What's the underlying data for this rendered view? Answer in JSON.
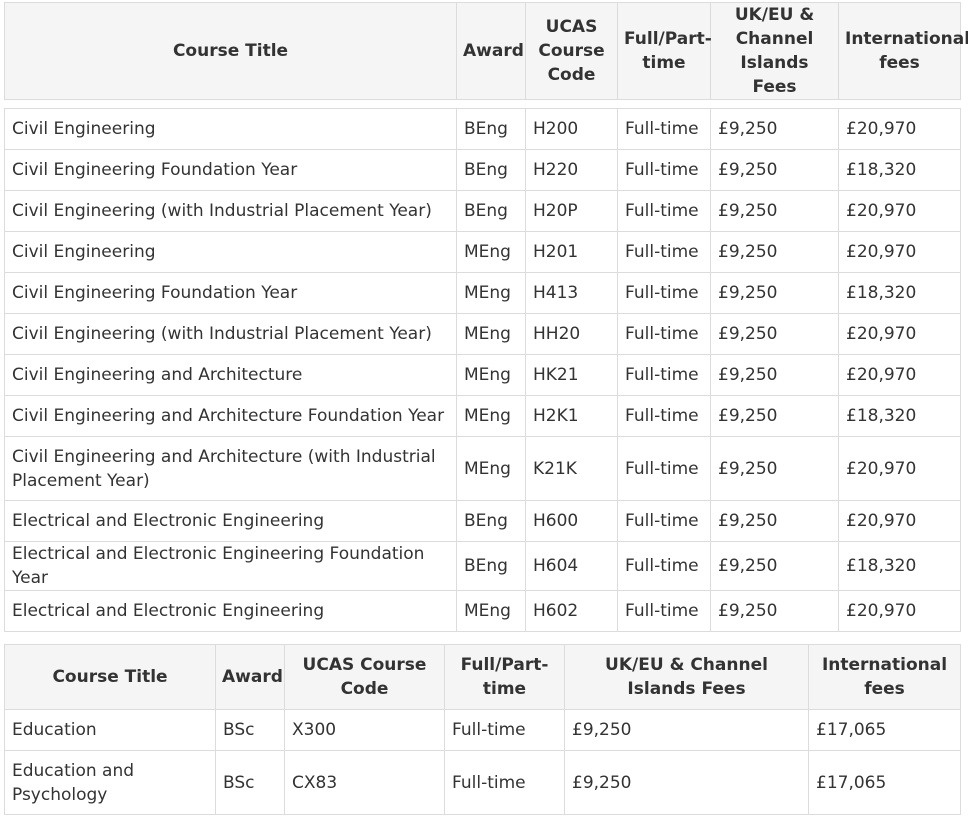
{
  "table1": {
    "headers": [
      "Course Title",
      "Award",
      "UCAS Course Code",
      "Full/Part-time",
      "UK/EU & Channel Islands Fees",
      "International fees"
    ],
    "rows": [
      [
        "Civil Engineering",
        "BEng",
        "H200",
        "Full-time",
        "£9,250",
        "£20,970"
      ],
      [
        "Civil Engineering Foundation Year",
        "BEng",
        "H220",
        "Full-time",
        "£9,250",
        "£18,320"
      ],
      [
        "Civil Engineering (with Industrial Placement Year)",
        "BEng",
        "H20P",
        "Full-time",
        "£9,250",
        "£20,970"
      ],
      [
        "Civil Engineering",
        "MEng",
        "H201",
        "Full-time",
        "£9,250",
        "£20,970"
      ],
      [
        "Civil Engineering Foundation Year",
        "MEng",
        "H413",
        "Full-time",
        "£9,250",
        "£18,320"
      ],
      [
        "Civil Engineering (with Industrial Placement Year)",
        "MEng",
        "HH20",
        "Full-time",
        "£9,250",
        "£20,970"
      ],
      [
        "Civil Engineering and Architecture",
        "MEng",
        "HK21",
        "Full-time",
        "£9,250",
        "£20,970"
      ],
      [
        "Civil Engineering and Architecture Foundation Year",
        "MEng",
        "H2K1",
        "Full-time",
        "£9,250",
        "£18,320"
      ],
      [
        "Civil Engineering and Architecture (with Industrial Placement Year)",
        "MEng",
        "K21K",
        "Full-time",
        "£9,250",
        "£20,970"
      ],
      [
        "Electrical and Electronic Engineering",
        "BEng",
        "H600",
        "Full-time",
        "£9,250",
        "£20,970"
      ],
      [
        "Electrical and Electronic Engineering Foundation Year",
        "BEng",
        "H604",
        "Full-time",
        "£9,250",
        "£18,320"
      ],
      [
        "Electrical and Electronic Engineering",
        "MEng",
        "H602",
        "Full-time",
        "£9,250",
        "£20,970"
      ]
    ]
  },
  "table2": {
    "headers": [
      "Course Title",
      "Award",
      "UCAS Course Code",
      "Full/Part-time",
      "UK/EU & Channel Islands Fees",
      "International fees"
    ],
    "rows": [
      [
        "Education",
        "BSc",
        "X300",
        "Full-time",
        "£9,250",
        "£17,065"
      ],
      [
        "Education and Psychology",
        "BSc",
        "CX83",
        "Full-time",
        "£9,250",
        "£17,065"
      ]
    ]
  }
}
